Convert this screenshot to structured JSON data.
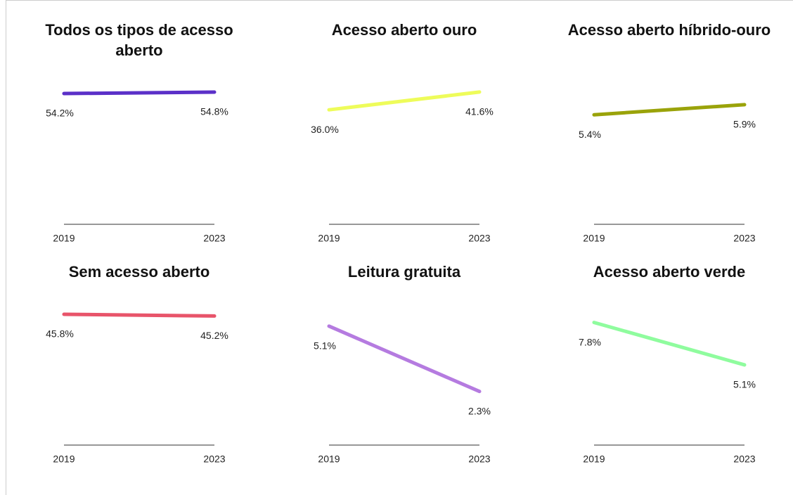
{
  "chart_data": [
    {
      "type": "line",
      "title": "Todos os tipos de acesso aberto",
      "x": [
        "2019",
        "2023"
      ],
      "values": [
        54.2,
        54.8
      ],
      "value_labels": [
        "54.2%",
        "54.8%"
      ],
      "color": "#5b30c8",
      "ylim": [
        0,
        58
      ]
    },
    {
      "type": "line",
      "title": "Acesso aberto ouro",
      "x": [
        "2019",
        "2023"
      ],
      "values": [
        36.0,
        41.6
      ],
      "value_labels": [
        "36.0%",
        "41.6%"
      ],
      "color": "#eefc5a",
      "ylim": [
        0,
        44
      ]
    },
    {
      "type": "line",
      "title": "Acesso aberto híbrido-ouro",
      "x": [
        "2019",
        "2023"
      ],
      "values": [
        5.4,
        5.9
      ],
      "value_labels": [
        "5.4%",
        "5.9%"
      ],
      "color": "#9aa30a",
      "ylim": [
        0,
        6.9
      ]
    },
    {
      "type": "line",
      "title": "Sem acesso aberto",
      "x": [
        "2019",
        "2023"
      ],
      "values": [
        45.8,
        45.2
      ],
      "value_labels": [
        "45.8%",
        "45.2%"
      ],
      "color": "#e8546a",
      "ylim": [
        0,
        49
      ]
    },
    {
      "type": "line",
      "title": "Leitura gratuita",
      "x": [
        "2019",
        "2023"
      ],
      "values": [
        5.1,
        2.3
      ],
      "value_labels": [
        "5.1%",
        "2.3%"
      ],
      "color": "#b57be0",
      "ylim": [
        0,
        6
      ]
    },
    {
      "type": "line",
      "title": "Acesso aberto verde",
      "x": [
        "2019",
        "2023"
      ],
      "values": [
        7.8,
        5.1
      ],
      "value_labels": [
        "7.8%",
        "5.1%"
      ],
      "color": "#8ffc9e",
      "ylim": [
        0,
        8.9
      ]
    }
  ]
}
